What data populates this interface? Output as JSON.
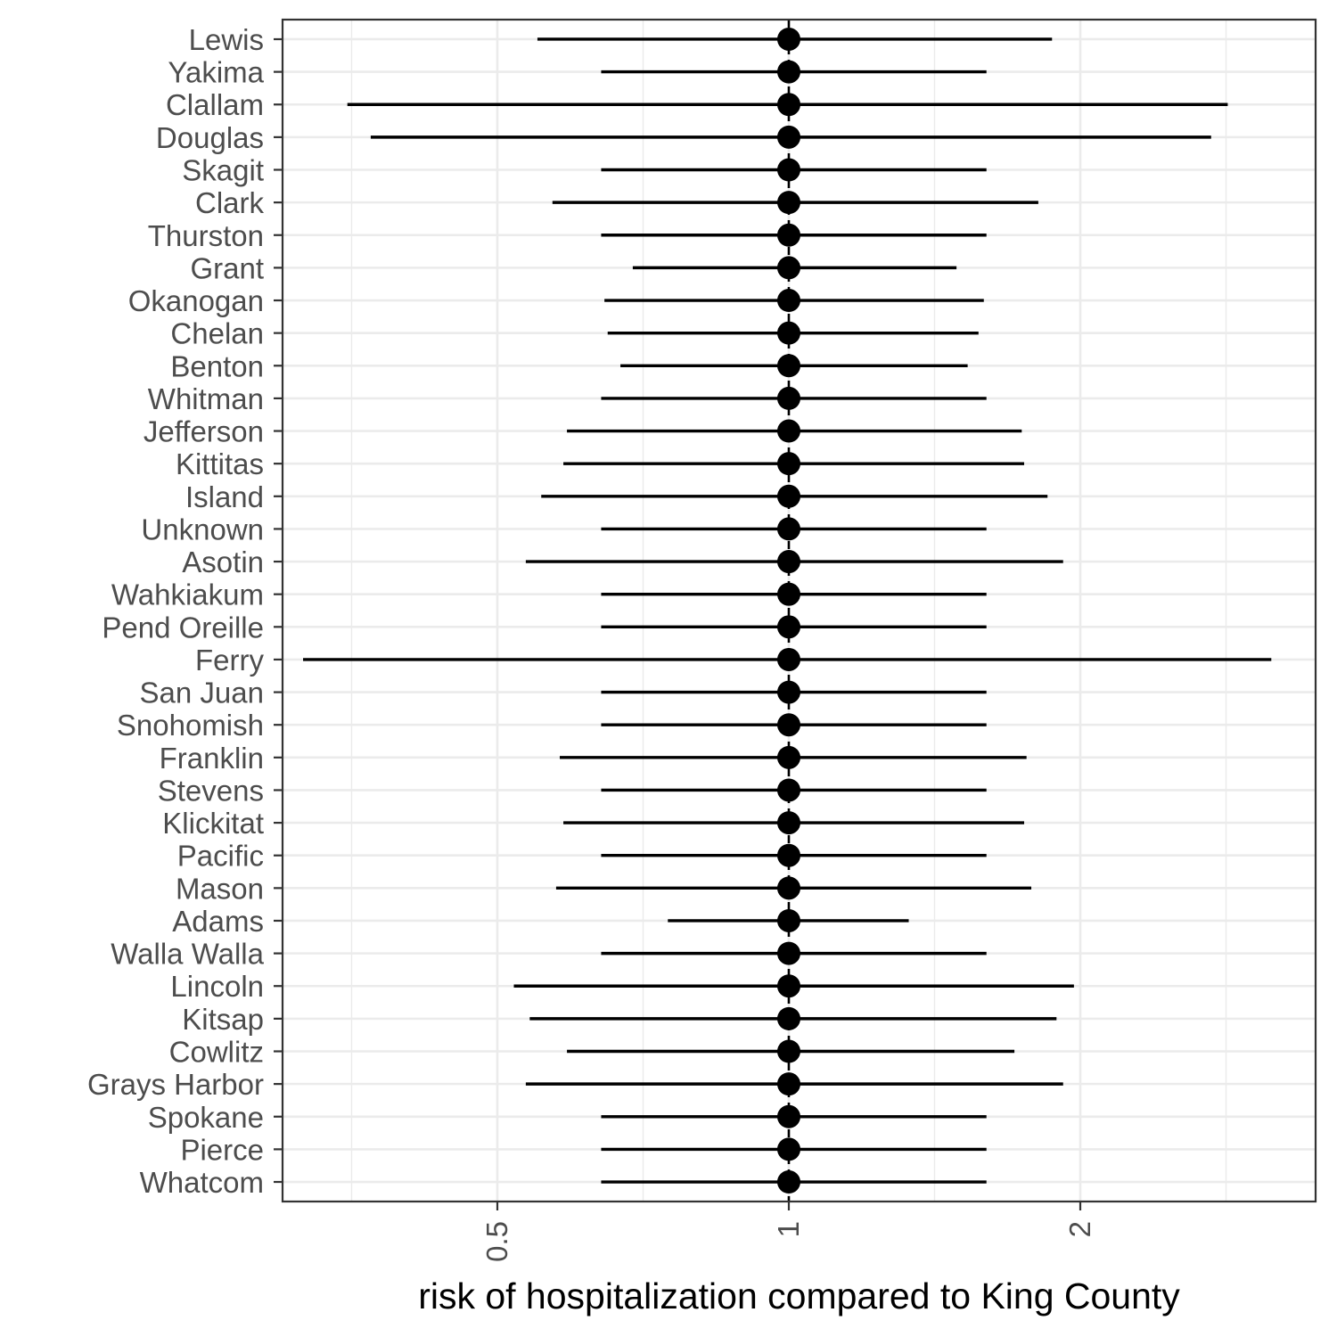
{
  "chart_data": {
    "type": "scatter",
    "subtype": "point-range (forest plot)",
    "title": "",
    "xlabel": "risk of hospitalization compared to King County",
    "ylabel": "",
    "x_scale": "log",
    "xlim": [
      0.3,
      3.5
    ],
    "x_ticks": [
      0.5,
      1,
      2
    ],
    "x_tick_labels": [
      "0.5",
      "1",
      "2"
    ],
    "grid": true,
    "legend": "none",
    "point_color": "#000000",
    "line_color": "#000000",
    "rows": [
      {
        "label": "Lewis",
        "estimate": 1.0,
        "lower": 0.55,
        "upper": 1.87
      },
      {
        "label": "Yakima",
        "estimate": 1.0,
        "lower": 0.64,
        "upper": 1.6
      },
      {
        "label": "Clallam",
        "estimate": 1.0,
        "lower": 0.35,
        "upper": 2.84
      },
      {
        "label": "Douglas",
        "estimate": 1.0,
        "lower": 0.37,
        "upper": 2.73
      },
      {
        "label": "Skagit",
        "estimate": 1.0,
        "lower": 0.64,
        "upper": 1.6
      },
      {
        "label": "Clark",
        "estimate": 1.0,
        "lower": 0.57,
        "upper": 1.81
      },
      {
        "label": "Thurston",
        "estimate": 1.0,
        "lower": 0.64,
        "upper": 1.6
      },
      {
        "label": "Grant",
        "estimate": 1.0,
        "lower": 0.69,
        "upper": 1.49
      },
      {
        "label": "Okanogan",
        "estimate": 1.0,
        "lower": 0.645,
        "upper": 1.59
      },
      {
        "label": "Chelan",
        "estimate": 1.0,
        "lower": 0.65,
        "upper": 1.57
      },
      {
        "label": "Benton",
        "estimate": 1.0,
        "lower": 0.67,
        "upper": 1.53
      },
      {
        "label": "Whitman",
        "estimate": 1.0,
        "lower": 0.64,
        "upper": 1.6
      },
      {
        "label": "Jefferson",
        "estimate": 1.0,
        "lower": 0.59,
        "upper": 1.74
      },
      {
        "label": "Kittitas",
        "estimate": 1.0,
        "lower": 0.585,
        "upper": 1.75
      },
      {
        "label": "Island",
        "estimate": 1.0,
        "lower": 0.555,
        "upper": 1.85
      },
      {
        "label": "Unknown",
        "estimate": 1.0,
        "lower": 0.64,
        "upper": 1.6
      },
      {
        "label": "Asotin",
        "estimate": 1.0,
        "lower": 0.535,
        "upper": 1.92
      },
      {
        "label": "Wahkiakum",
        "estimate": 1.0,
        "lower": 0.64,
        "upper": 1.6
      },
      {
        "label": "Pend Oreille",
        "estimate": 1.0,
        "lower": 0.64,
        "upper": 1.6
      },
      {
        "label": "Ferry",
        "estimate": 1.0,
        "lower": 0.315,
        "upper": 3.15
      },
      {
        "label": "San Juan",
        "estimate": 1.0,
        "lower": 0.64,
        "upper": 1.6
      },
      {
        "label": "Snohomish",
        "estimate": 1.0,
        "lower": 0.64,
        "upper": 1.6
      },
      {
        "label": "Franklin",
        "estimate": 1.0,
        "lower": 0.58,
        "upper": 1.76
      },
      {
        "label": "Stevens",
        "estimate": 1.0,
        "lower": 0.64,
        "upper": 1.6
      },
      {
        "label": "Klickitat",
        "estimate": 1.0,
        "lower": 0.585,
        "upper": 1.75
      },
      {
        "label": "Pacific",
        "estimate": 1.0,
        "lower": 0.64,
        "upper": 1.6
      },
      {
        "label": "Mason",
        "estimate": 1.0,
        "lower": 0.575,
        "upper": 1.78
      },
      {
        "label": "Adams",
        "estimate": 1.0,
        "lower": 0.75,
        "upper": 1.33
      },
      {
        "label": "Walla Walla",
        "estimate": 1.0,
        "lower": 0.64,
        "upper": 1.6
      },
      {
        "label": "Lincoln",
        "estimate": 1.0,
        "lower": 0.52,
        "upper": 1.97
      },
      {
        "label": "Kitsap",
        "estimate": 1.0,
        "lower": 0.54,
        "upper": 1.89
      },
      {
        "label": "Cowlitz",
        "estimate": 1.0,
        "lower": 0.59,
        "upper": 1.71
      },
      {
        "label": "Grays Harbor",
        "estimate": 1.0,
        "lower": 0.535,
        "upper": 1.92
      },
      {
        "label": "Spokane",
        "estimate": 1.0,
        "lower": 0.64,
        "upper": 1.6
      },
      {
        "label": "Pierce",
        "estimate": 1.0,
        "lower": 0.64,
        "upper": 1.6
      },
      {
        "label": "Whatcom",
        "estimate": 1.0,
        "lower": 0.64,
        "upper": 1.6
      }
    ]
  }
}
